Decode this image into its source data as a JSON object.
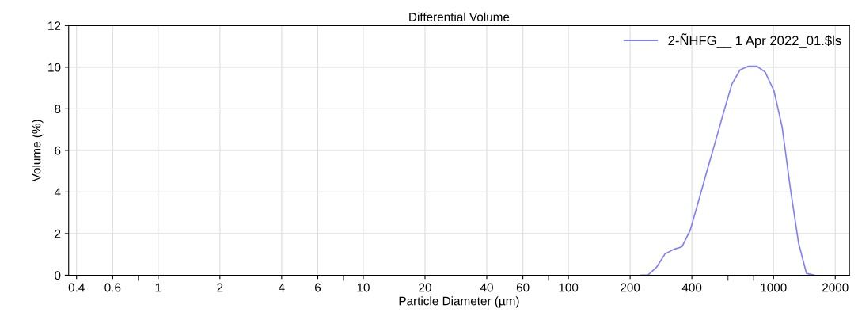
{
  "chart_data": {
    "type": "line",
    "title": "Differential Volume",
    "xlabel": "Particle Diameter (µm)",
    "ylabel": "Volume (%)",
    "log": "x",
    "grid": true,
    "legend": "top right",
    "marker": "none",
    "line_style": "solid",
    "xlim": [
      0.366,
      2345
    ],
    "ylim": [
      0,
      12
    ],
    "xticks": [
      0.4,
      0.6,
      {
        "value": 0.8,
        "label": null
      },
      1,
      2,
      4,
      6,
      {
        "value": 8,
        "label": null
      },
      10,
      20,
      40,
      60,
      {
        "value": 80,
        "label": null
      },
      100,
      200,
      400,
      {
        "value": 600,
        "label": null
      },
      {
        "value": 800,
        "label": null
      },
      1000,
      2000
    ],
    "yticks": [
      0,
      2,
      4,
      6,
      8,
      10,
      12
    ],
    "series": [
      {
        "name": "2-ÑHFG__ 1 Apr 2022_01.$ls",
        "color": "#8080ff",
        "x": [
          225,
          244,
          269,
          296,
          326,
          358,
          392,
          431,
          473,
          520,
          571,
          627,
          687,
          755,
          829,
          910,
          1005,
          1101,
          1210,
          1324,
          1447,
          1579
        ],
        "values": [
          0,
          0,
          0.38,
          1.03,
          1.24,
          1.37,
          2.14,
          3.56,
          4.99,
          6.4,
          7.82,
          9.19,
          9.87,
          10.05,
          10.05,
          9.77,
          8.87,
          7.14,
          4.13,
          1.56,
          0.09,
          0
        ]
      }
    ]
  }
}
